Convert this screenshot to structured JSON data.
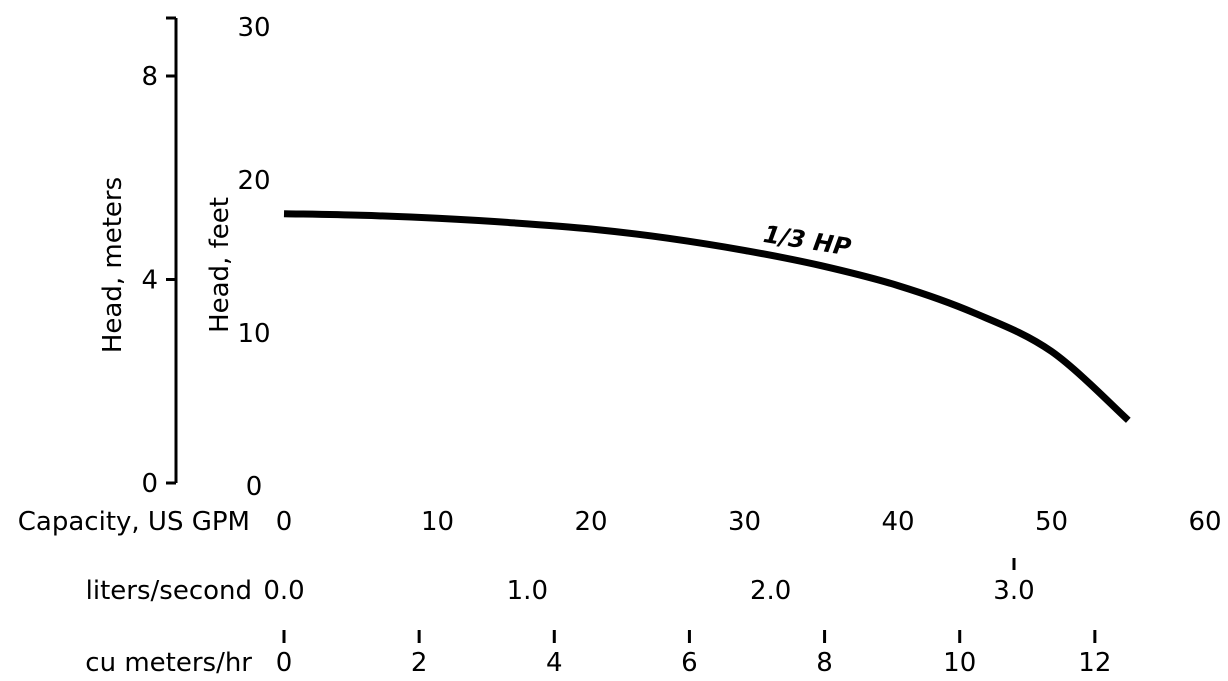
{
  "chart_data": {
    "type": "line",
    "title": "",
    "xlabel": "Capacity, US GPM",
    "ylabel": "Head, feet",
    "xlim": [
      0,
      60
    ],
    "ylim": [
      0,
      30
    ],
    "x_ticks": [
      "0",
      "10",
      "20",
      "30",
      "40",
      "50",
      "60"
    ],
    "y_ticks": [
      "0",
      "10",
      "20",
      "30"
    ],
    "series": [
      {
        "name": "1/3 HP",
        "x": [
          0,
          5,
          10,
          15,
          20,
          25,
          30,
          35,
          40,
          45,
          50,
          55
        ],
        "y": [
          17.6,
          17.5,
          17.3,
          17.0,
          16.6,
          16.0,
          15.2,
          14.2,
          12.9,
          11.1,
          8.6,
          4.1
        ]
      }
    ],
    "secondary_axes": {
      "meters": {
        "label": "Head, meters",
        "ticks": [
          "0",
          "4",
          "8"
        ],
        "range": [
          0,
          9.14
        ]
      },
      "liters_per_second": {
        "label": "liters/second",
        "ticks": [
          "0.0",
          "1.0",
          "2.0",
          "3.0"
        ],
        "range": [
          0,
          3.785
        ]
      },
      "cu_meters_hr": {
        "label": "cu meters/hr",
        "ticks": [
          "0",
          "2",
          "4",
          "6",
          "8",
          "10",
          "12"
        ],
        "range": [
          0,
          13.63
        ]
      }
    },
    "grid": false,
    "legend": "none"
  }
}
